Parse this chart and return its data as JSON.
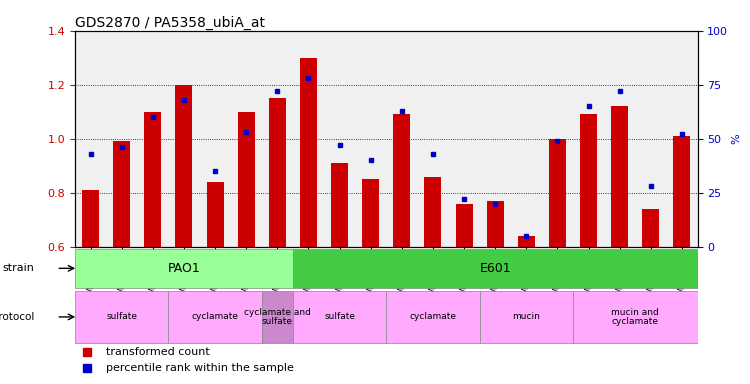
{
  "title": "GDS2870 / PA5358_ubiA_at",
  "samples": [
    "GSM208615",
    "GSM208616",
    "GSM208617",
    "GSM208618",
    "GSM208619",
    "GSM208620",
    "GSM208621",
    "GSM208602",
    "GSM208603",
    "GSM208604",
    "GSM208605",
    "GSM208606",
    "GSM208607",
    "GSM208608",
    "GSM208609",
    "GSM208610",
    "GSM208611",
    "GSM208612",
    "GSM208613",
    "GSM208614"
  ],
  "transformed_count": [
    0.81,
    0.99,
    1.1,
    1.2,
    0.84,
    1.1,
    1.15,
    1.3,
    0.91,
    0.85,
    1.09,
    0.86,
    0.76,
    0.77,
    0.64,
    1.0,
    1.09,
    1.12,
    0.74,
    1.01
  ],
  "percentile_rank": [
    43,
    46,
    60,
    68,
    35,
    53,
    72,
    78,
    47,
    40,
    63,
    43,
    22,
    20,
    5,
    49,
    65,
    72,
    28,
    52
  ],
  "ylim_left": [
    0.6,
    1.4
  ],
  "ylim_right": [
    0,
    100
  ],
  "yticks_left": [
    0.6,
    0.8,
    1.0,
    1.2,
    1.4
  ],
  "yticks_right": [
    0,
    25,
    50,
    75,
    100
  ],
  "bar_color": "#cc0000",
  "dot_color": "#0000cc",
  "bg_color": "#f0f0f0",
  "strain_pao1": {
    "label": "PAO1",
    "start": 0,
    "end": 7,
    "color": "#99ff99"
  },
  "strain_e601": {
    "label": "E601",
    "start": 7,
    "end": 20,
    "color": "#44cc44"
  },
  "growth_protocol": [
    {
      "label": "sulfate",
      "start": 0,
      "end": 3,
      "color": "#ffaaff"
    },
    {
      "label": "cyclamate",
      "start": 3,
      "end": 6,
      "color": "#ffaaff"
    },
    {
      "label": "cyclamate and\nsulfate",
      "start": 6,
      "end": 7,
      "color": "#cc88cc"
    },
    {
      "label": "sulfate",
      "start": 7,
      "end": 10,
      "color": "#ffaaff"
    },
    {
      "label": "cyclamate",
      "start": 10,
      "end": 13,
      "color": "#ffaaff"
    },
    {
      "label": "mucin",
      "start": 13,
      "end": 16,
      "color": "#ffaaff"
    },
    {
      "label": "mucin and\ncyclamate",
      "start": 16,
      "end": 20,
      "color": "#ffaaff"
    }
  ],
  "legend_items": [
    {
      "label": "transformed count",
      "color": "#cc0000"
    },
    {
      "label": "percentile rank within the sample",
      "color": "#0000cc"
    }
  ]
}
